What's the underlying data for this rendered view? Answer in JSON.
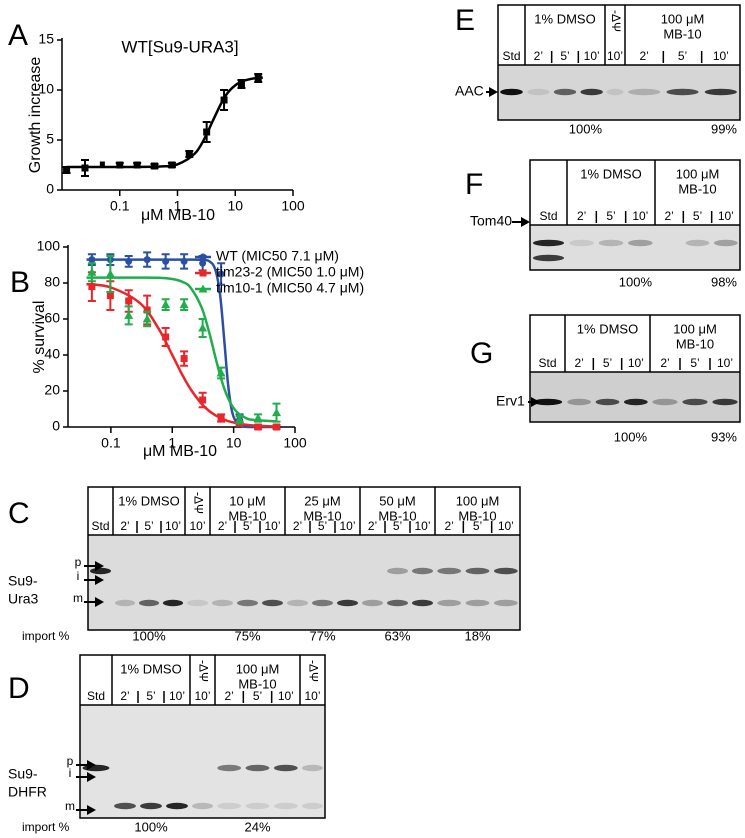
{
  "chart_data": [
    {
      "type": "scatter",
      "panel": "A",
      "title": "WT[Su9-URA3]",
      "x_label": "μM MB-10",
      "y_label": "Growth increase",
      "x": [
        0.012,
        0.025,
        0.05,
        0.1,
        0.2,
        0.4,
        0.8,
        1.6,
        3.2,
        6.4,
        12.8,
        25
      ],
      "values": [
        2.0,
        2.2,
        2.6,
        2.5,
        2.5,
        2.4,
        2.5,
        3.6,
        5.8,
        9.0,
        10.6,
        11.2
      ],
      "errors": [
        0.3,
        0.8,
        0,
        0.2,
        0.2,
        0.2,
        0.2,
        0.3,
        1.0,
        1.0,
        0.4,
        0.4
      ],
      "color": "#000000",
      "marker": "square",
      "fit_x": [
        0.012,
        0.1,
        0.5,
        1,
        2,
        3,
        4,
        6,
        8,
        12,
        20,
        30
      ],
      "fit": [
        2.3,
        2.3,
        2.35,
        2.57,
        3.65,
        5.25,
        6.8,
        8.9,
        9.95,
        10.76,
        11.14,
        11.24
      ],
      "log_x": true,
      "xlim": [
        0.01,
        100
      ],
      "xticks": [
        0.1,
        1,
        10,
        100
      ],
      "ylim": [
        0,
        15
      ],
      "yticks": [
        0,
        5,
        10,
        15
      ]
    },
    {
      "type": "scatter",
      "panel": "B",
      "x_label": "μM MB-10",
      "y_label": "% survival",
      "x": [
        0.049,
        0.098,
        0.195,
        0.39,
        0.78,
        1.56,
        3.125,
        6.25,
        12.5,
        25,
        50
      ],
      "fit_x": [
        0.04,
        0.1,
        0.3,
        0.6,
        1,
        1.5,
        2,
        3,
        4,
        5,
        6,
        7,
        8,
        9,
        10,
        12,
        15,
        20,
        50
      ],
      "series": [
        {
          "name": "WT (MIC50 7.1 μM)",
          "color": "#2b4fa3",
          "marker": "circle",
          "values": [
            93,
            93,
            92,
            93,
            92,
            92,
            91,
            85,
            4,
            0,
            0
          ],
          "errors": [
            3,
            3,
            3,
            4,
            4,
            4,
            4,
            6,
            3,
            1,
            1
          ],
          "fit": [
            93,
            93,
            93,
            93,
            93,
            93,
            93,
            92.9,
            92.1,
            87.7,
            73.8,
            49.1,
            25.8,
            12.1,
            5.6,
            1.4,
            0.2,
            0,
            0
          ]
        },
        {
          "name": "tim23-2 (MIC50 1.0 μM)",
          "color": "#e8262b",
          "marker": "square",
          "values": [
            78,
            73,
            70,
            65,
            50,
            38,
            15,
            5,
            2,
            0,
            0
          ],
          "errors": [
            8,
            8,
            6,
            8,
            5,
            4,
            4,
            2,
            1,
            1,
            1
          ],
          "fit": [
            79.4,
            77.5,
            68.7,
            54.6,
            40,
            28.2,
            20.9,
            12.9,
            8.9,
            6.6,
            5.1,
            4.1,
            3.4,
            2.9,
            2.5,
            1.9,
            1.4,
            0.9,
            0.2
          ]
        },
        {
          "name": "tim10-1 (MIC50 4.7 μM)",
          "color": "#1fae4b",
          "marker": "triangle",
          "values": [
            86,
            85,
            62,
            60,
            68,
            68,
            55,
            30,
            4,
            5,
            8
          ],
          "errors": [
            5,
            10,
            5,
            4,
            3,
            3,
            5,
            3,
            2,
            2,
            5
          ],
          "fit": [
            83,
            83,
            83,
            82.9,
            82.2,
            80.5,
            77.3,
            66.5,
            52.5,
            39.3,
            29,
            21.6,
            16.5,
            13,
            10.5,
            7.5,
            5.4,
            4,
            3.1
          ]
        }
      ],
      "legend": "upper right",
      "log_x": true,
      "xlim": [
        0.02,
        100
      ],
      "xticks": [
        0.1,
        1,
        10,
        100
      ],
      "ylim": [
        0,
        100
      ],
      "yticks": [
        0,
        20,
        40,
        60,
        80,
        100
      ]
    }
  ],
  "gels": [
    {
      "letter": "C",
      "groups": [
        {
          "label": [],
          "lanes": [
            "Std"
          ]
        },
        {
          "label": [
            "1% DMSO"
          ],
          "lanes": [
            "2’",
            "5’",
            "10’"
          ]
        },
        {
          "label": [
            "-ΔΨ"
          ],
          "lanes": [
            "10’"
          ]
        },
        {
          "label": [
            "10 μM",
            "MB-10"
          ],
          "lanes": [
            "2’",
            "5’",
            "10’"
          ]
        },
        {
          "label": [
            "25 μM",
            "MB-10"
          ],
          "lanes": [
            "2’",
            "5’",
            "10’"
          ]
        },
        {
          "label": [
            "50 μM",
            "MB-10"
          ],
          "lanes": [
            "2’",
            "5’",
            "10’"
          ]
        },
        {
          "label": [
            "100 μM",
            "MB-10"
          ],
          "lanes": [
            "2’",
            "5’",
            "10’"
          ]
        }
      ],
      "protein": [
        "Su9-",
        "Ura3"
      ],
      "markers": [
        "p",
        "i",
        "m"
      ],
      "row_label": "import %",
      "percents": [
        null,
        "100%",
        null,
        "75%",
        "77%",
        "63%",
        "18%"
      ]
    },
    {
      "letter": "D",
      "groups": [
        {
          "label": [],
          "lanes": [
            "Std"
          ]
        },
        {
          "label": [
            "1% DMSO"
          ],
          "lanes": [
            "2’",
            "5’",
            "10’"
          ]
        },
        {
          "label": [
            "-ΔΨ"
          ],
          "lanes": [
            "10’"
          ]
        },
        {
          "label": [
            "100 μM",
            "MB-10"
          ],
          "lanes": [
            "2’",
            "5’",
            "10’"
          ]
        },
        {
          "label": [
            "-ΔΨ"
          ],
          "lanes": [
            "10’"
          ]
        }
      ],
      "protein": [
        "Su9-",
        "DHFR"
      ],
      "markers": [
        "p",
        "i",
        "m"
      ],
      "row_label": "import %",
      "percents": [
        null,
        "100%",
        null,
        "24%",
        null
      ]
    },
    {
      "letter": "E",
      "groups": [
        {
          "label": [],
          "lanes": [
            "Std"
          ]
        },
        {
          "label": [
            "1% DMSO"
          ],
          "lanes": [
            "2’",
            "5’",
            "10’"
          ]
        },
        {
          "label": [
            "-ΔΨ"
          ],
          "lanes": [
            "10’"
          ]
        },
        {
          "label": [
            "100 μM",
            "MB-10"
          ],
          "lanes": [
            "2’",
            "5’",
            "10’"
          ]
        }
      ],
      "protein": [
        "AAC"
      ],
      "percents": [
        null,
        "100%",
        null,
        "99%"
      ]
    },
    {
      "letter": "F",
      "groups": [
        {
          "label": [],
          "lanes": [
            "Std"
          ]
        },
        {
          "label": [
            "1% DMSO"
          ],
          "lanes": [
            "2’",
            "5’",
            "10’"
          ]
        },
        {
          "label": [
            "100 μM",
            "MB-10"
          ],
          "lanes": [
            "2’",
            "5’",
            "10’"
          ]
        }
      ],
      "protein": [
        "Tom40"
      ],
      "percents": [
        null,
        "100%",
        "98%"
      ]
    },
    {
      "letter": "G",
      "groups": [
        {
          "label": [],
          "lanes": [
            "Std"
          ]
        },
        {
          "label": [
            "1% DMSO"
          ],
          "lanes": [
            "2’",
            "5’",
            "10’"
          ]
        },
        {
          "label": [
            "100 μM",
            "MB-10"
          ],
          "lanes": [
            "2’",
            "5’",
            "10’"
          ]
        }
      ],
      "protein": [
        "Erv1"
      ],
      "percents": [
        null,
        "100%",
        "93%"
      ]
    }
  ]
}
